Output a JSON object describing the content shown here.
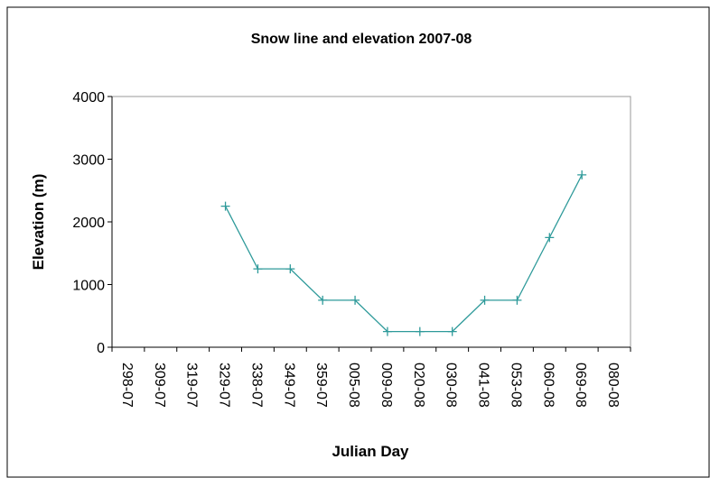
{
  "chart_data": {
    "type": "line",
    "title": "Snow line and elevation 2007-08",
    "x_label": "Julian Day",
    "y_label": "Elevation (m)",
    "categories": [
      "298-07",
      "309-07",
      "319-07",
      "329-07",
      "338-07",
      "349-07",
      "359-07",
      "005-08",
      "009-08",
      "020-08",
      "030-08",
      "041-08",
      "053-08",
      "060-08",
      "069-08",
      "080-08"
    ],
    "series": [
      {
        "name": "Elevation",
        "color": "#2e9a9a",
        "values": [
          null,
          null,
          null,
          2250,
          1250,
          1250,
          750,
          750,
          250,
          250,
          250,
          750,
          750,
          1750,
          2750,
          null
        ]
      }
    ],
    "ylim": [
      0,
      4000
    ],
    "yticks": [
      0,
      1000,
      2000,
      3000,
      4000
    ],
    "grid": false
  }
}
